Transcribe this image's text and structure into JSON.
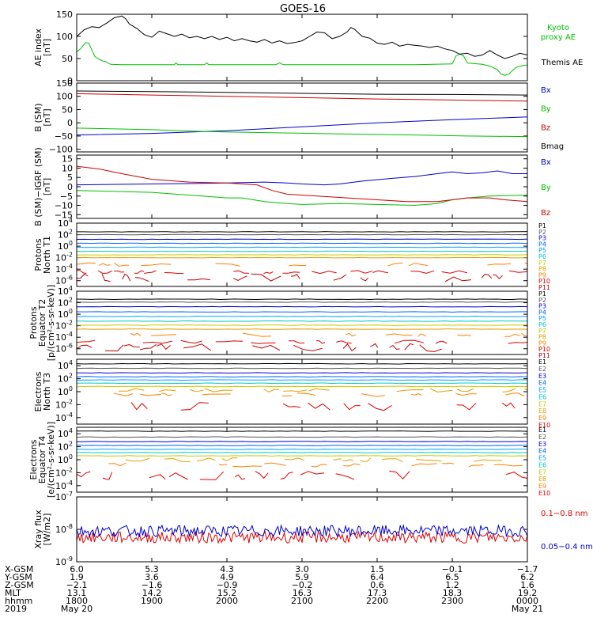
{
  "chart_data": [
    {
      "panel": "ae",
      "type": "line",
      "title": "GOES-16",
      "ylabel": [
        "AE index",
        "[nT]"
      ],
      "ylim": [
        0,
        150
      ],
      "yticks": [
        0,
        50,
        100,
        150
      ],
      "series": [
        {
          "name": "Kyoto proxy AE",
          "color": "#00c000",
          "points": [
            [
              0,
              65
            ],
            [
              0.5,
              72
            ],
            [
              1.2,
              86
            ],
            [
              1.6,
              85
            ],
            [
              2.0,
              70
            ],
            [
              2.4,
              55
            ],
            [
              2.8,
              50
            ],
            [
              3.4,
              45
            ],
            [
              4.0,
              42
            ],
            [
              4.5,
              37
            ],
            [
              6,
              36
            ],
            [
              8,
              36
            ],
            [
              10,
              36
            ],
            [
              13,
              36
            ],
            [
              13.2,
              40
            ],
            [
              13.5,
              36
            ],
            [
              16,
              36
            ],
            [
              17,
              36
            ],
            [
              17.3,
              40
            ],
            [
              17.6,
              36
            ],
            [
              20,
              36
            ],
            [
              25,
              36
            ],
            [
              26.5,
              36
            ],
            [
              27,
              40
            ],
            [
              27.5,
              36
            ],
            [
              30,
              36
            ],
            [
              32,
              36
            ],
            [
              35,
              36
            ],
            [
              40,
              36
            ],
            [
              45,
              36
            ],
            [
              50,
              38
            ],
            [
              50.5,
              56
            ],
            [
              51,
              60
            ],
            [
              51.5,
              56
            ],
            [
              52,
              40
            ],
            [
              54,
              37
            ],
            [
              55,
              33
            ],
            [
              56,
              25
            ],
            [
              56.5,
              15
            ],
            [
              57,
              12
            ],
            [
              57.5,
              15
            ],
            [
              58.5,
              30
            ],
            [
              59.5,
              35
            ],
            [
              60,
              35
            ]
          ]
        },
        {
          "name": "Themis AE",
          "color": "#000000",
          "points": [
            [
              0,
              100
            ],
            [
              1,
              115
            ],
            [
              2,
              122
            ],
            [
              3,
              120
            ],
            [
              4,
              130
            ],
            [
              5,
              142
            ],
            [
              6,
              146
            ],
            [
              6.5,
              140
            ],
            [
              7,
              128
            ],
            [
              8,
              118
            ],
            [
              9,
              104
            ],
            [
              10,
              98
            ],
            [
              11,
              112
            ],
            [
              12,
              106
            ],
            [
              13,
              100
            ],
            [
              14,
              105
            ],
            [
              15,
              97
            ],
            [
              16,
              100
            ],
            [
              17,
              95
            ],
            [
              18,
              100
            ],
            [
              19,
              93
            ],
            [
              20,
              98
            ],
            [
              21,
              90
            ],
            [
              22,
              95
            ],
            [
              23,
              90
            ],
            [
              24,
              87
            ],
            [
              25,
              93
            ],
            [
              26,
              85
            ],
            [
              27,
              90
            ],
            [
              28,
              84
            ],
            [
              29,
              86
            ],
            [
              30,
              90
            ],
            [
              31,
              100
            ],
            [
              32,
              110
            ],
            [
              33,
              108
            ],
            [
              34,
              95
            ],
            [
              35,
              100
            ],
            [
              36,
              110
            ],
            [
              36.5,
              120
            ],
            [
              37,
              116
            ],
            [
              38,
              100
            ],
            [
              39,
              96
            ],
            [
              40,
              85
            ],
            [
              41,
              82
            ],
            [
              42,
              87
            ],
            [
              43,
              78
            ],
            [
              44,
              82
            ],
            [
              45,
              80
            ],
            [
              46,
              78
            ],
            [
              47,
              75
            ],
            [
              48,
              78
            ],
            [
              49,
              72
            ],
            [
              50,
              68
            ],
            [
              51,
              60
            ],
            [
              52,
              62
            ],
            [
              53,
              55
            ],
            [
              54,
              58
            ],
            [
              55,
              68
            ],
            [
              56,
              58
            ],
            [
              57,
              50
            ],
            [
              58,
              55
            ],
            [
              59,
              62
            ],
            [
              60,
              58
            ]
          ]
        }
      ]
    },
    {
      "panel": "b_sm",
      "type": "line",
      "ylabel": [
        "B (SM)",
        "[nT]"
      ],
      "ylim": [
        -110,
        150
      ],
      "yticks": [
        -100,
        -50,
        0,
        50,
        100,
        150
      ],
      "series": [
        {
          "name": "Bx",
          "color": "#0000cc",
          "points": [
            [
              0,
              -46
            ],
            [
              10,
              -40
            ],
            [
              20,
              -30
            ],
            [
              30,
              -15
            ],
            [
              40,
              0
            ],
            [
              50,
              12
            ],
            [
              60,
              22
            ]
          ]
        },
        {
          "name": "By",
          "color": "#00c000",
          "points": [
            [
              0,
              -20
            ],
            [
              10,
              -26
            ],
            [
              17,
              -33
            ],
            [
              25,
              -37
            ],
            [
              35,
              -42
            ],
            [
              45,
              -46
            ],
            [
              52,
              -50
            ],
            [
              60,
              -52
            ]
          ]
        },
        {
          "name": "Bz",
          "color": "#cc0000",
          "points": [
            [
              0,
              110
            ],
            [
              10,
              105
            ],
            [
              20,
              100
            ],
            [
              30,
              95
            ],
            [
              40,
              90
            ],
            [
              50,
              86
            ],
            [
              60,
              82
            ]
          ]
        },
        {
          "name": "Bmag",
          "color": "#000000",
          "points": [
            [
              0,
              120
            ],
            [
              10,
              118
            ],
            [
              20,
              115
            ],
            [
              30,
              111
            ],
            [
              40,
              108
            ],
            [
              50,
              107
            ],
            [
              60,
              105
            ]
          ]
        }
      ]
    },
    {
      "panel": "b_igrf",
      "type": "line",
      "ylabel": [
        "B (SM)−IGRF (SM)",
        "[nT]"
      ],
      "ylim": [
        -17,
        17
      ],
      "yticks": [
        -15,
        -10,
        -5,
        0,
        5,
        10,
        15
      ],
      "series": [
        {
          "name": "Bx",
          "color": "#0000cc",
          "points": [
            [
              0,
              1
            ],
            [
              10,
              1.5
            ],
            [
              20,
              2
            ],
            [
              25,
              2.5
            ],
            [
              28,
              2
            ],
            [
              30,
              1.5
            ],
            [
              33,
              1
            ],
            [
              35,
              1.5
            ],
            [
              38,
              3
            ],
            [
              42,
              4.5
            ],
            [
              45,
              5.5
            ],
            [
              48,
              7
            ],
            [
              50,
              8
            ],
            [
              52,
              7
            ],
            [
              54,
              7.5
            ],
            [
              56,
              8.5
            ],
            [
              58,
              7
            ],
            [
              60,
              7
            ]
          ]
        },
        {
          "name": "By",
          "color": "#00c000",
          "points": [
            [
              0,
              -2
            ],
            [
              5,
              -2.5
            ],
            [
              10,
              -3
            ],
            [
              15,
              -4.5
            ],
            [
              20,
              -6
            ],
            [
              22,
              -6
            ],
            [
              25,
              -8
            ],
            [
              28,
              -9
            ],
            [
              30,
              -9.5
            ],
            [
              35,
              -9
            ],
            [
              40,
              -9.5
            ],
            [
              45,
              -10
            ],
            [
              48,
              -9
            ],
            [
              50,
              -7
            ],
            [
              52,
              -6
            ],
            [
              55,
              -5
            ],
            [
              60,
              -4.5
            ]
          ]
        },
        {
          "name": "Bz",
          "color": "#cc0000",
          "points": [
            [
              0,
              11
            ],
            [
              3,
              9.5
            ],
            [
              6,
              7
            ],
            [
              10,
              4
            ],
            [
              15,
              2.5
            ],
            [
              20,
              2
            ],
            [
              24,
              1
            ],
            [
              26,
              -2
            ],
            [
              28,
              -4
            ],
            [
              32,
              -5
            ],
            [
              36,
              -6
            ],
            [
              40,
              -7
            ],
            [
              44,
              -8
            ],
            [
              48,
              -8
            ],
            [
              50,
              -7
            ],
            [
              52,
              -6
            ],
            [
              55,
              -6
            ],
            [
              57,
              -7
            ],
            [
              60,
              -8
            ]
          ]
        }
      ]
    },
    {
      "panel": "protons_north",
      "type": "line",
      "ylabel": [
        "Protons",
        "North T1"
      ],
      "yscale": "log",
      "ylim_exp": [
        -7,
        4
      ],
      "ytick_exponents": [
        4,
        2,
        0,
        -2,
        -4,
        -6
      ],
      "series_names": [
        "P1",
        "P2",
        "P3",
        "P4",
        "P5",
        "P6",
        "P7",
        "P8",
        "P9",
        "P10",
        "P11"
      ],
      "series_colors": [
        "#000000",
        "#555555",
        "#0000cc",
        "#0060ff",
        "#00a0ff",
        "#00c8c8",
        "#c8c800",
        "#e0a000",
        "#ff8000",
        "#dd0000",
        "#bb0000"
      ],
      "series_levels_log10": [
        2.5,
        2.0,
        1.2,
        0.5,
        -0.2,
        -0.9,
        -1.5,
        -2.0,
        -3.2,
        -4.5,
        -5.5
      ]
    },
    {
      "panel": "protons_equator",
      "type": "line",
      "ylabel": [
        "Protons",
        "Equator T2",
        "[p/(cm²-s-sr-keV)]"
      ],
      "yscale": "log",
      "ylim_exp": [
        -7,
        4
      ],
      "ytick_exponents": [
        4,
        2,
        0,
        -2,
        -4,
        -6
      ],
      "series_names": [
        "P1",
        "P2",
        "P3",
        "P4",
        "P5",
        "P6",
        "P7",
        "P8",
        "P9",
        "P10",
        "P11"
      ],
      "series_colors": [
        "#000000",
        "#555555",
        "#0000cc",
        "#0060ff",
        "#00a0ff",
        "#00c8c8",
        "#c8c800",
        "#e0a000",
        "#ff8000",
        "#dd0000",
        "#bb0000"
      ],
      "series_levels_log10": [
        2.6,
        2.1,
        1.3,
        0.4,
        -0.4,
        -1.2,
        -1.9,
        -2.6,
        -3.6,
        -4.8,
        -5.8
      ]
    },
    {
      "panel": "electrons_north",
      "type": "line",
      "ylabel": [
        "Electrons",
        "North T3"
      ],
      "yscale": "log",
      "ylim_exp": [
        -5,
        5
      ],
      "ytick_exponents": [
        4,
        2,
        0,
        -2,
        -4
      ],
      "series_names": [
        "E1",
        "E2",
        "E3",
        "E4",
        "E5",
        "E6",
        "E7",
        "E8",
        "E9",
        "E10"
      ],
      "series_colors": [
        "#000000",
        "#555555",
        "#0000cc",
        "#0060ff",
        "#00a0ff",
        "#00c8c8",
        "#c8c800",
        "#e0a000",
        "#ff8000",
        "#dd0000"
      ],
      "series_levels_log10": [
        4.3,
        3.6,
        2.9,
        2.3,
        1.8,
        1.3,
        0.8,
        0.2,
        -0.5,
        -2.3
      ]
    },
    {
      "panel": "electrons_equator",
      "type": "line",
      "ylabel": [
        "Electrons",
        "Equator T4",
        "[e/(cm²-s-sr-keV)]"
      ],
      "yscale": "log",
      "ylim_exp": [
        -5,
        5
      ],
      "ytick_exponents": [
        4,
        2,
        0,
        -2,
        -4
      ],
      "series_names": [
        "E1",
        "E2",
        "E3",
        "E4",
        "E5",
        "E6",
        "E7",
        "E8",
        "E9",
        "E10"
      ],
      "series_colors": [
        "#000000",
        "#555555",
        "#0000cc",
        "#0060ff",
        "#00a0ff",
        "#00c8c8",
        "#c8c800",
        "#e0a000",
        "#ff8000",
        "#dd0000"
      ],
      "series_levels_log10": [
        4.4,
        3.5,
        2.8,
        2.2,
        1.6,
        1.1,
        0.6,
        0.0,
        -0.8,
        -2.4
      ]
    },
    {
      "panel": "xray",
      "type": "line",
      "ylabel": [
        "Xray flux",
        "[W/m2]"
      ],
      "yscale": "log",
      "ylim_exp": [
        -9,
        -7
      ],
      "ytick_exponents": [
        -7,
        -8,
        -9
      ],
      "series": [
        {
          "name": "0.1−0.8 nm",
          "color": "#dd0000",
          "level_log10": -8.2
        },
        {
          "name": "0.05−0.4 nm",
          "color": "#0000cc",
          "level_log10": -8.1
        }
      ]
    }
  ],
  "time_axis": {
    "ticks": [
      0,
      10,
      20,
      30,
      40,
      50,
      60
    ],
    "xlim": [
      0,
      60
    ]
  },
  "ephemeris": {
    "row_labels": [
      "X-GSM",
      "Y-GSM",
      "Z-GSM",
      "MLT",
      "hhmm",
      "2019"
    ],
    "columns": [
      [
        "6.0",
        "1.9",
        "−2.1",
        "13.1",
        "1800",
        "May 20"
      ],
      [
        "5.3",
        "3.6",
        "−1.6",
        "14.2",
        "1900",
        ""
      ],
      [
        "4.3",
        "4.9",
        "−0.9",
        "15.2",
        "2000",
        ""
      ],
      [
        "3.0",
        "5.9",
        "−0.2",
        "16.3",
        "2100",
        ""
      ],
      [
        "1.5",
        "6.4",
        "0.6",
        "17.3",
        "2200",
        ""
      ],
      [
        "−0.1",
        "6.5",
        "1.2",
        "18.3",
        "2300",
        ""
      ],
      [
        "−1.7",
        "6.2",
        "1.6",
        "19.2",
        "0000",
        "May 21"
      ]
    ]
  }
}
